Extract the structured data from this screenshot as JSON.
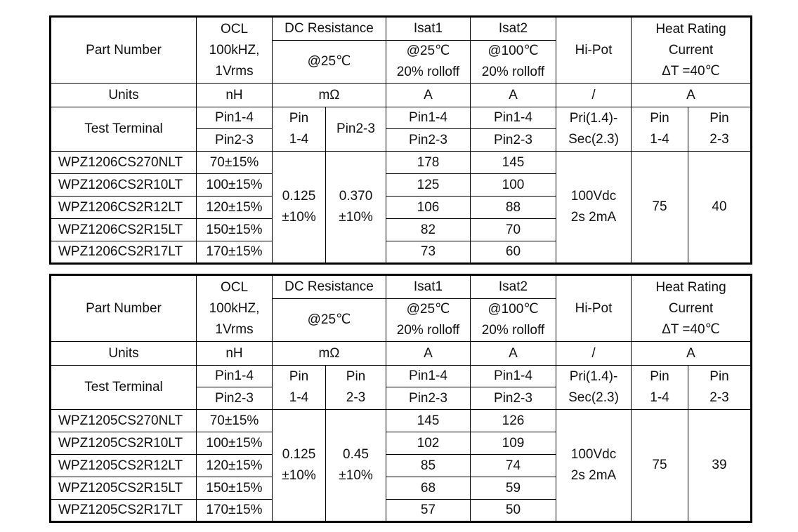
{
  "tables": [
    {
      "header": {
        "part_number": "Part Number",
        "ocl": [
          "OCL",
          "100kHZ,",
          "1Vrms"
        ],
        "dcr": [
          "DC Resistance",
          "@25℃"
        ],
        "isat1": [
          "Isat1",
          "@25℃",
          "20% rolloff"
        ],
        "isat2": [
          "Isat2",
          "@100℃",
          "20% rolloff"
        ],
        "hipot": "Hi-Pot",
        "heat": [
          "Heat Rating",
          "Current",
          "ΔT =40℃"
        ]
      },
      "units": {
        "label": "Units",
        "ocl": "nH",
        "dcr": "mΩ",
        "isat1": "A",
        "isat2": "A",
        "hipot": "/",
        "heat": "A"
      },
      "test_terminal": {
        "label": "Test Terminal",
        "ocl": [
          "Pin1-4",
          "Pin2-3"
        ],
        "dcr1": [
          "Pin",
          "1-4"
        ],
        "dcr2": [
          "Pin2-3"
        ],
        "isat1": [
          "Pin1-4",
          "Pin2-3"
        ],
        "isat2": [
          "Pin1-4",
          "Pin2-3"
        ],
        "hipot": [
          "Pri(1.4)-",
          "Sec(2.3)"
        ],
        "heat1": [
          "Pin",
          "1-4"
        ],
        "heat2": [
          "Pin",
          "2-3"
        ]
      },
      "rows": [
        {
          "part": "WPZ1206CS270NLT",
          "ocl": "70±15%",
          "isat1": "178",
          "isat2": "145"
        },
        {
          "part": "WPZ1206CS2R10LT",
          "ocl": "100±15%",
          "isat1": "125",
          "isat2": "100"
        },
        {
          "part": "WPZ1206CS2R12LT",
          "ocl": "120±15%",
          "isat1": "106",
          "isat2": "88"
        },
        {
          "part": "WPZ1206CS2R15LT",
          "ocl": "150±15%",
          "isat1": "82",
          "isat2": "70"
        },
        {
          "part": "WPZ1206CS2R17LT",
          "ocl": "170±15%",
          "isat1": "73",
          "isat2": "60"
        }
      ],
      "shared": {
        "dcr1": [
          "0.125",
          "±10%"
        ],
        "dcr2": [
          "0.370",
          "±10%"
        ],
        "hipot": [
          "100Vdc",
          "2s 2mA"
        ],
        "heat1": "75",
        "heat2": "40"
      }
    },
    {
      "header": {
        "part_number": "Part Number",
        "ocl": [
          "OCL",
          "100kHZ,",
          "1Vrms"
        ],
        "dcr": [
          "DC Resistance",
          "@25℃"
        ],
        "isat1": [
          "Isat1",
          "@25℃",
          "20% rolloff"
        ],
        "isat2": [
          "Isat2",
          "@100℃",
          "20% rolloff"
        ],
        "hipot": "Hi-Pot",
        "heat": [
          "Heat Rating",
          "Current",
          "ΔT =40℃"
        ]
      },
      "units": {
        "label": "Units",
        "ocl": "nH",
        "dcr": "mΩ",
        "isat1": "A",
        "isat2": "A",
        "hipot": "/",
        "heat": "A"
      },
      "test_terminal": {
        "label": "Test Terminal",
        "ocl": [
          "Pin1-4",
          "Pin2-3"
        ],
        "dcr1": [
          "Pin",
          "1-4"
        ],
        "dcr2": [
          "Pin",
          "2-3"
        ],
        "isat1": [
          "Pin1-4",
          "Pin2-3"
        ],
        "isat2": [
          "Pin1-4",
          "Pin2-3"
        ],
        "hipot": [
          "Pri(1.4)-",
          "Sec(2.3)"
        ],
        "heat1": [
          "Pin",
          "1-4"
        ],
        "heat2": [
          "Pin",
          "2-3"
        ]
      },
      "rows": [
        {
          "part": "WPZ1205CS270NLT",
          "ocl": "70±15%",
          "isat1": "145",
          "isat2": "126"
        },
        {
          "part": "WPZ1205CS2R10LT",
          "ocl": "100±15%",
          "isat1": "102",
          "isat2": "109"
        },
        {
          "part": "WPZ1205CS2R12LT",
          "ocl": "120±15%",
          "isat1": "85",
          "isat2": "74"
        },
        {
          "part": "WPZ1205CS2R15LT",
          "ocl": "150±15%",
          "isat1": "68",
          "isat2": "59"
        },
        {
          "part": "WPZ1205CS2R17LT",
          "ocl": "170±15%",
          "isat1": "57",
          "isat2": "50"
        }
      ],
      "shared": {
        "dcr1": [
          "0.125",
          "±10%"
        ],
        "dcr2": [
          "0.45",
          "±10%"
        ],
        "hipot": [
          "100Vdc",
          "2s 2mA"
        ],
        "heat1": "75",
        "heat2": "39"
      }
    }
  ]
}
